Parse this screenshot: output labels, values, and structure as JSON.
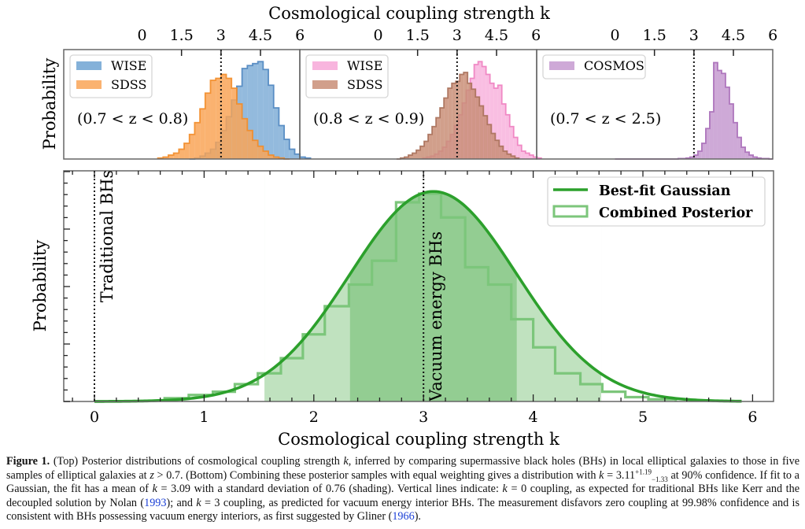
{
  "chart_data": [
    {
      "type": "bar",
      "panel": "top-left",
      "title": "",
      "top_xlabel": "Cosmological coupling strength k",
      "ylabel": "Probability",
      "xticks": [
        "0",
        "1.5",
        "3",
        "4.5",
        "6"
      ],
      "xlim": [
        0,
        6
      ],
      "redshift_label": "(0.7 < z < 0.8)",
      "vline_k": 3,
      "legend": [
        "WISE",
        "SDSS"
      ],
      "legend_position": "top-left",
      "bin_width": 0.2,
      "series": [
        {
          "name": "WISE",
          "color": "#6fa3d2",
          "edge": "#4f86c0",
          "bins_start": 1.8,
          "values": [
            0.0,
            0.01,
            0.03,
            0.06,
            0.1,
            0.17,
            0.29,
            0.43,
            0.6,
            0.74,
            0.92,
            0.95,
            0.97,
            0.99,
            0.91,
            0.75,
            0.52,
            0.34,
            0.2,
            0.1,
            0.05,
            0.02,
            0.01
          ]
        },
        {
          "name": "SDSS",
          "color": "#f9a557",
          "edge": "#f28c28",
          "bins_start": 0.6,
          "values": [
            0.01,
            0.02,
            0.04,
            0.06,
            0.1,
            0.16,
            0.25,
            0.37,
            0.51,
            0.67,
            0.8,
            0.82,
            0.86,
            0.82,
            0.72,
            0.56,
            0.41,
            0.29,
            0.19,
            0.13,
            0.08,
            0.04,
            0.02,
            0.01,
            0.0
          ]
        }
      ]
    },
    {
      "type": "bar",
      "panel": "top-middle",
      "xticks": [
        "0",
        "1.5",
        "3",
        "4.5",
        "6"
      ],
      "xlim": [
        0,
        6
      ],
      "redshift_label": "(0.8 < z < 0.9)",
      "vline_k": 3,
      "legend": [
        "WISE",
        "SDSS"
      ],
      "legend_position": "top-left",
      "bin_width": 0.15,
      "series": [
        {
          "name": "WISE",
          "color": "#f7a8d8",
          "edge": "#ee7fc0",
          "bins_start": 1.7,
          "values": [
            0.01,
            0.02,
            0.03,
            0.05,
            0.08,
            0.12,
            0.18,
            0.25,
            0.34,
            0.45,
            0.57,
            0.7,
            0.82,
            0.96,
            0.99,
            0.94,
            0.86,
            0.77,
            0.72,
            0.75,
            0.56,
            0.45,
            0.33,
            0.22,
            0.14,
            0.08,
            0.06,
            0.04,
            0.02,
            0.01
          ]
        },
        {
          "name": "SDSS",
          "color": "#c98e77",
          "edge": "#a8705a",
          "bins_start": 0.7,
          "values": [
            0.0,
            0.01,
            0.02,
            0.04,
            0.06,
            0.09,
            0.13,
            0.18,
            0.25,
            0.33,
            0.42,
            0.52,
            0.62,
            0.72,
            0.77,
            0.79,
            0.86,
            0.88,
            0.77,
            0.71,
            0.63,
            0.54,
            0.44,
            0.35,
            0.26,
            0.19,
            0.13,
            0.08,
            0.05,
            0.03,
            0.01
          ]
        }
      ]
    },
    {
      "type": "bar",
      "panel": "top-right",
      "xticks": [
        "0",
        "1.5",
        "3",
        "4.5",
        "6"
      ],
      "xlim": [
        0,
        6
      ],
      "redshift_label": "(0.7 < z < 2.5)",
      "vline_k": 3,
      "legend": [
        "COSMOS"
      ],
      "legend_position": "top-left",
      "bin_width": 0.15,
      "series": [
        {
          "name": "COSMOS",
          "color": "#c59ad0",
          "edge": "#a96db8",
          "bins_start": 0.0,
          "values": [
            0,
            0,
            0,
            0,
            0,
            0,
            0,
            0,
            0,
            0,
            0,
            0,
            0,
            0,
            0,
            0,
            0.005,
            0.005,
            0.01,
            0.02,
            0.04,
            0.08,
            0.16,
            0.31,
            0.48,
            0.98,
            0.9,
            0.87,
            0.73,
            0.56,
            0.37,
            0.22,
            0.12,
            0.07,
            0.04,
            0.02,
            0.01,
            0.005,
            0.005,
            0
          ]
        }
      ]
    },
    {
      "type": "bar",
      "panel": "bottom",
      "xlabel": "Cosmological coupling strength k",
      "ylabel": "Probability",
      "xticks": [
        "0",
        "1",
        "2",
        "3",
        "4",
        "5",
        "6"
      ],
      "xlim": [
        -0.29,
        6.18
      ],
      "legend": [
        "Best-fit Gaussian",
        "Combined Posterior"
      ],
      "legend_position": "top-right",
      "annotations": [
        {
          "text": "Traditional BHs",
          "k": 0
        },
        {
          "text": "Vacuum energy BHs",
          "k": 3
        }
      ],
      "gaussian": {
        "mean": 3.09,
        "std": 0.76,
        "peak": 0.97,
        "range": [
          0,
          5.9
        ],
        "color": "#2ca02c"
      },
      "shading": {
        "outer": {
          "from": 1.55,
          "to": 4.62,
          "color": "#c0e2bf"
        },
        "inner": {
          "from": 2.33,
          "to": 3.85,
          "color": "#93cd92"
        }
      },
      "histogram": {
        "name": "Combined Posterior",
        "edge": "#7cc67b",
        "bin_edges": [
          0.64,
          0.86,
          1.08,
          1.28,
          1.49,
          1.7,
          1.9,
          2.1,
          2.32,
          2.53,
          2.75,
          2.96,
          3.16,
          3.38,
          3.59,
          3.8,
          4.0,
          4.2,
          4.43,
          4.63,
          4.84,
          5.05,
          5.3
        ],
        "values": [
          0.015,
          0.03,
          0.045,
          0.08,
          0.13,
          0.2,
          0.31,
          0.44,
          0.54,
          0.65,
          0.92,
          0.96,
          0.85,
          0.62,
          0.54,
          0.38,
          0.25,
          0.13,
          0.08,
          0.045,
          0.02,
          0.01
        ]
      }
    }
  ],
  "caption": {
    "label": "Figure 1.",
    "segments": [
      {
        "t": " (Top) Posterior distributions of cosmological coupling strength "
      },
      {
        "t": "k",
        "i": true
      },
      {
        "t": ", inferred by comparing supermassive black holes (BHs) in local elliptical galaxies to those in five samples of elliptical galaxies at "
      },
      {
        "t": "z",
        "i": true
      },
      {
        "t": " > 0.7. (Bottom) Combining these posterior samples with equal weighting gives a distribution with "
      },
      {
        "t": "k",
        "i": true
      },
      {
        "t": " = 3.11"
      },
      {
        "t": "+1.19",
        "sup": true
      },
      {
        "t": "−1.33",
        "sub": true
      },
      {
        "t": " at 90% confidence. If fit to a Gaussian, the fit has a mean of "
      },
      {
        "t": "k",
        "i": true
      },
      {
        "t": " = 3.09 with a standard deviation of 0.76 (shading). Vertical lines indicate: "
      },
      {
        "t": "k",
        "i": true
      },
      {
        "t": " = 0 coupling, as expected for traditional BHs like Kerr and the decoupled solution by Nolan ("
      },
      {
        "t": "1993",
        "cite": true
      },
      {
        "t": "); and "
      },
      {
        "t": "k",
        "i": true
      },
      {
        "t": " = 3 coupling, as predicted for vacuum energy interior BHs. The measurement disfavors zero coupling at 99.98% confidence and is consistent with BHs possessing vacuum energy interiors, as first suggested by Gliner ("
      },
      {
        "t": "1966",
        "cite": true
      },
      {
        "t": ")."
      }
    ]
  }
}
